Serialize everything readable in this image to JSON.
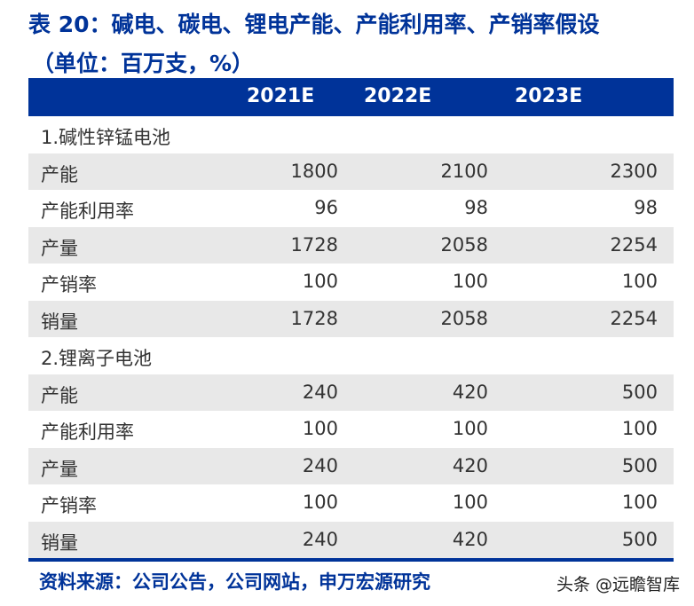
{
  "title": {
    "line1": "表 20：碱电、碳电、锂电产能、产能利用率、产销率假设",
    "line2": "（单位：百万支，%）"
  },
  "header": [
    "",
    "2021E",
    "2022E",
    "2023E"
  ],
  "sections": [
    {
      "label": "1.碱性锌锰电池",
      "rows": [
        {
          "label": "产能",
          "values": [
            "1800",
            "2100",
            "2300"
          ]
        },
        {
          "label": "产能利用率",
          "values": [
            "96",
            "98",
            "98"
          ]
        },
        {
          "label": "产量",
          "values": [
            "1728",
            "2058",
            "2254"
          ]
        },
        {
          "label": "产销率",
          "values": [
            "100",
            "100",
            "100"
          ]
        },
        {
          "label": "销量",
          "values": [
            "1728",
            "2058",
            "2254"
          ]
        }
      ]
    },
    {
      "label": "2.锂离子电池",
      "rows": [
        {
          "label": "产能",
          "values": [
            "240",
            "420",
            "500"
          ]
        },
        {
          "label": "产能利用率",
          "values": [
            "100",
            "100",
            "100"
          ]
        },
        {
          "label": "产量",
          "values": [
            "240",
            "420",
            "500"
          ]
        },
        {
          "label": "产销率",
          "values": [
            "100",
            "100",
            "100"
          ]
        },
        {
          "label": "销量",
          "values": [
            "240",
            "420",
            "500"
          ]
        }
      ]
    }
  ],
  "source": "资料来源：公司公告，公司网站，申万宏源研究",
  "watermark": "头条 @远瞻智库",
  "colors": {
    "accent": "#003399",
    "stripe": "#e8e8e8"
  }
}
